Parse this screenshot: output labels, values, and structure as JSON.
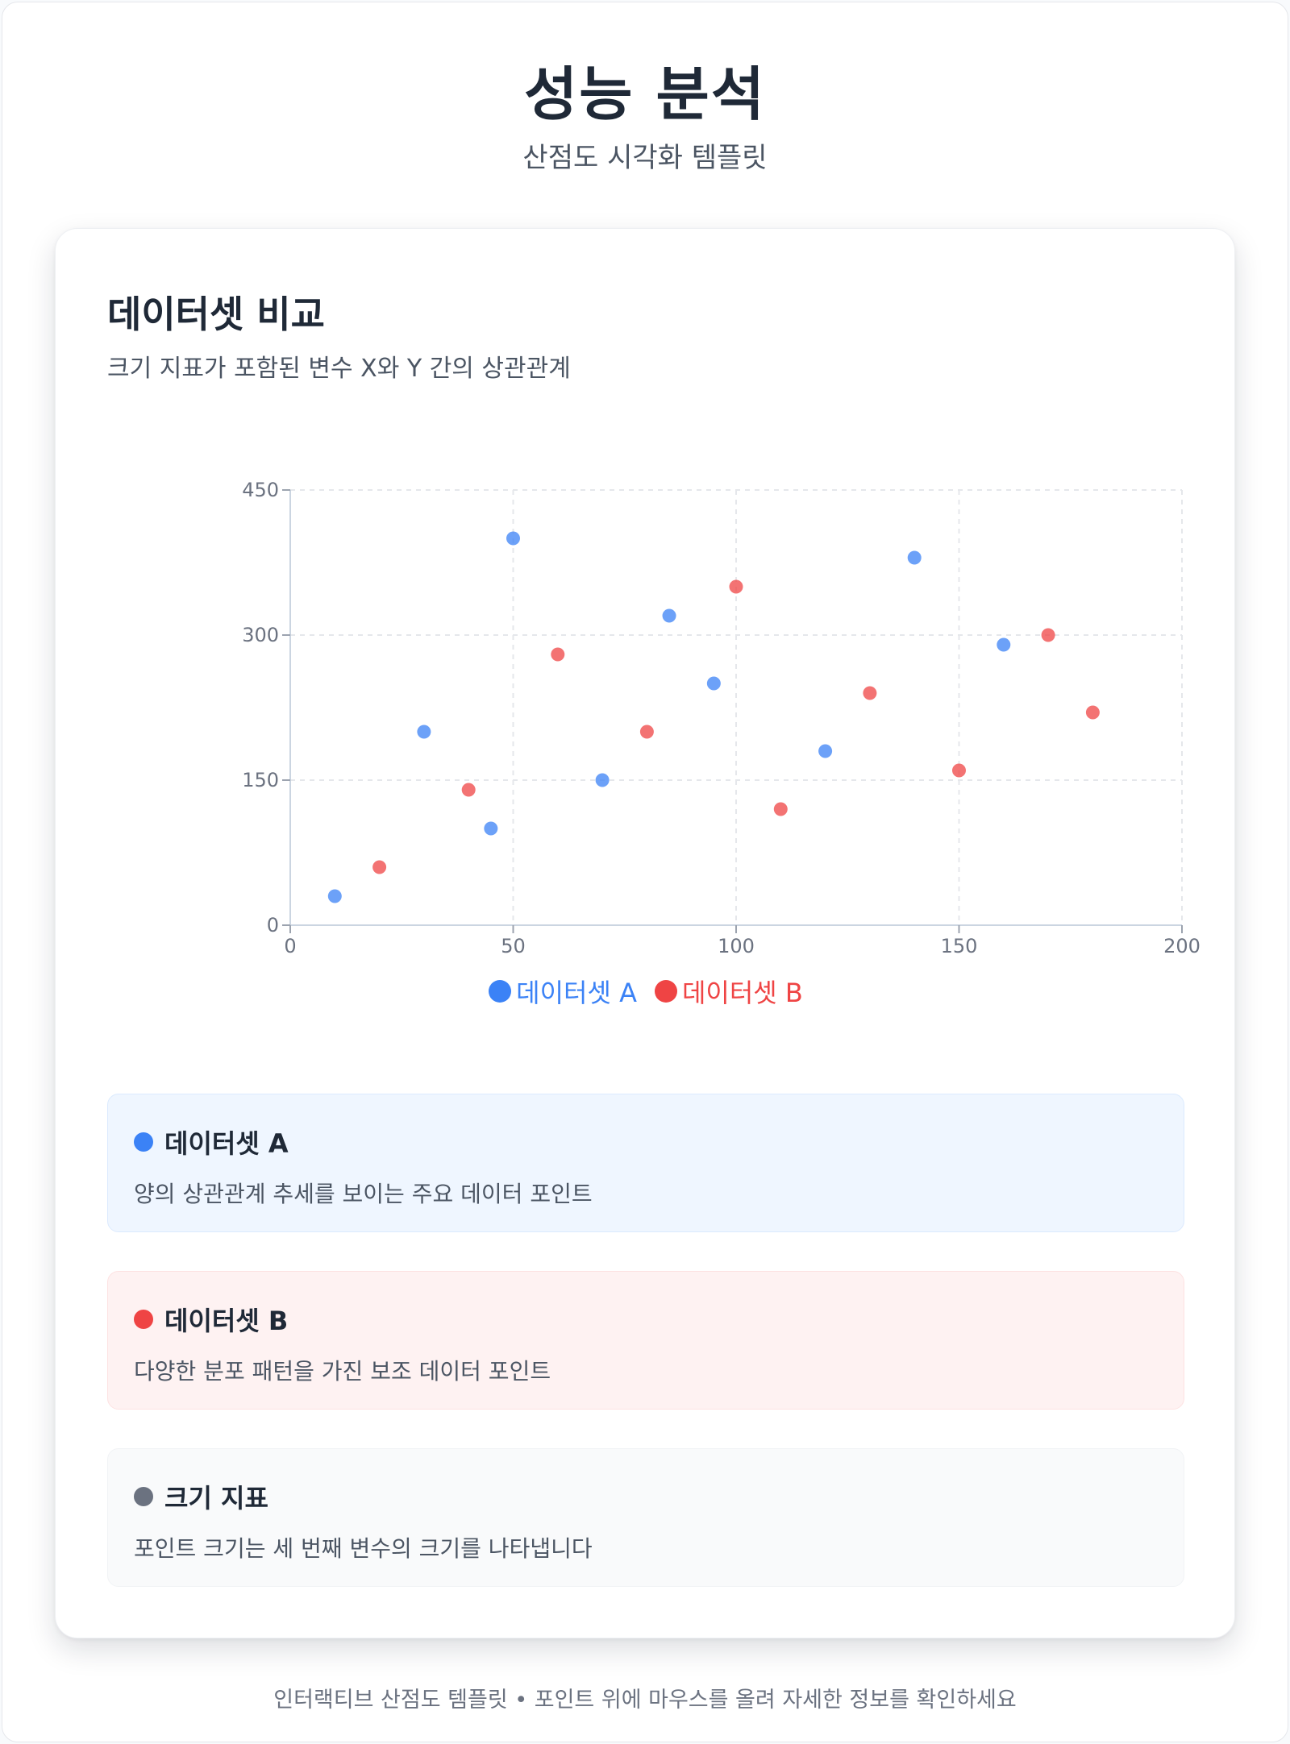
{
  "header": {
    "title": "성능 분석",
    "subtitle": "산점도 시각화 템플릿"
  },
  "card": {
    "title": "데이터셋 비교",
    "description": "크기 지표가 포함된 변수 X와 Y 간의 상관관계"
  },
  "chart_data": {
    "type": "scatter",
    "title": "",
    "xlabel": "",
    "ylabel": "",
    "xlim": [
      0,
      200
    ],
    "ylim": [
      0,
      450
    ],
    "xticks": [
      0,
      50,
      100,
      150,
      200
    ],
    "yticks": [
      0,
      150,
      300,
      450
    ],
    "grid": true,
    "legend_position": "bottom-center",
    "series": [
      {
        "name": "데이터셋 A",
        "color": "#3b82f6",
        "points": [
          {
            "x": 10,
            "y": 30
          },
          {
            "x": 30,
            "y": 200
          },
          {
            "x": 45,
            "y": 100
          },
          {
            "x": 50,
            "y": 400
          },
          {
            "x": 70,
            "y": 150
          },
          {
            "x": 85,
            "y": 320
          },
          {
            "x": 95,
            "y": 250
          },
          {
            "x": 120,
            "y": 180
          },
          {
            "x": 140,
            "y": 380
          },
          {
            "x": 160,
            "y": 290
          }
        ]
      },
      {
        "name": "데이터셋 B",
        "color": "#ef4444",
        "points": [
          {
            "x": 20,
            "y": 60
          },
          {
            "x": 40,
            "y": 140
          },
          {
            "x": 60,
            "y": 280
          },
          {
            "x": 80,
            "y": 200
          },
          {
            "x": 100,
            "y": 350
          },
          {
            "x": 110,
            "y": 120
          },
          {
            "x": 130,
            "y": 240
          },
          {
            "x": 150,
            "y": 160
          },
          {
            "x": 170,
            "y": 300
          },
          {
            "x": 180,
            "y": 220
          }
        ]
      }
    ]
  },
  "info_boxes": [
    {
      "title": "데이터셋 A",
      "text": "양의 상관관계 추세를 보이는 주요 데이터 포인트",
      "color": "#3b82f6",
      "bg": "#eff6ff",
      "border": "#dbeafe"
    },
    {
      "title": "데이터셋 B",
      "text": "다양한 분포 패턴을 가진 보조 데이터 포인트",
      "color": "#ef4444",
      "bg": "#fef2f2",
      "border": "#fde2e2"
    },
    {
      "title": "크기 지표",
      "text": "포인트 크기는 세 번째 변수의 크기를 나타냅니다",
      "color": "#6b7280",
      "bg": "#f9fafb",
      "border": "#f1f3f5"
    }
  ],
  "footer": {
    "text": "인터랙티브 산점도 템플릿 • 포인트 위에 마우스를 올려 자세한 정보를 확인하세요"
  }
}
